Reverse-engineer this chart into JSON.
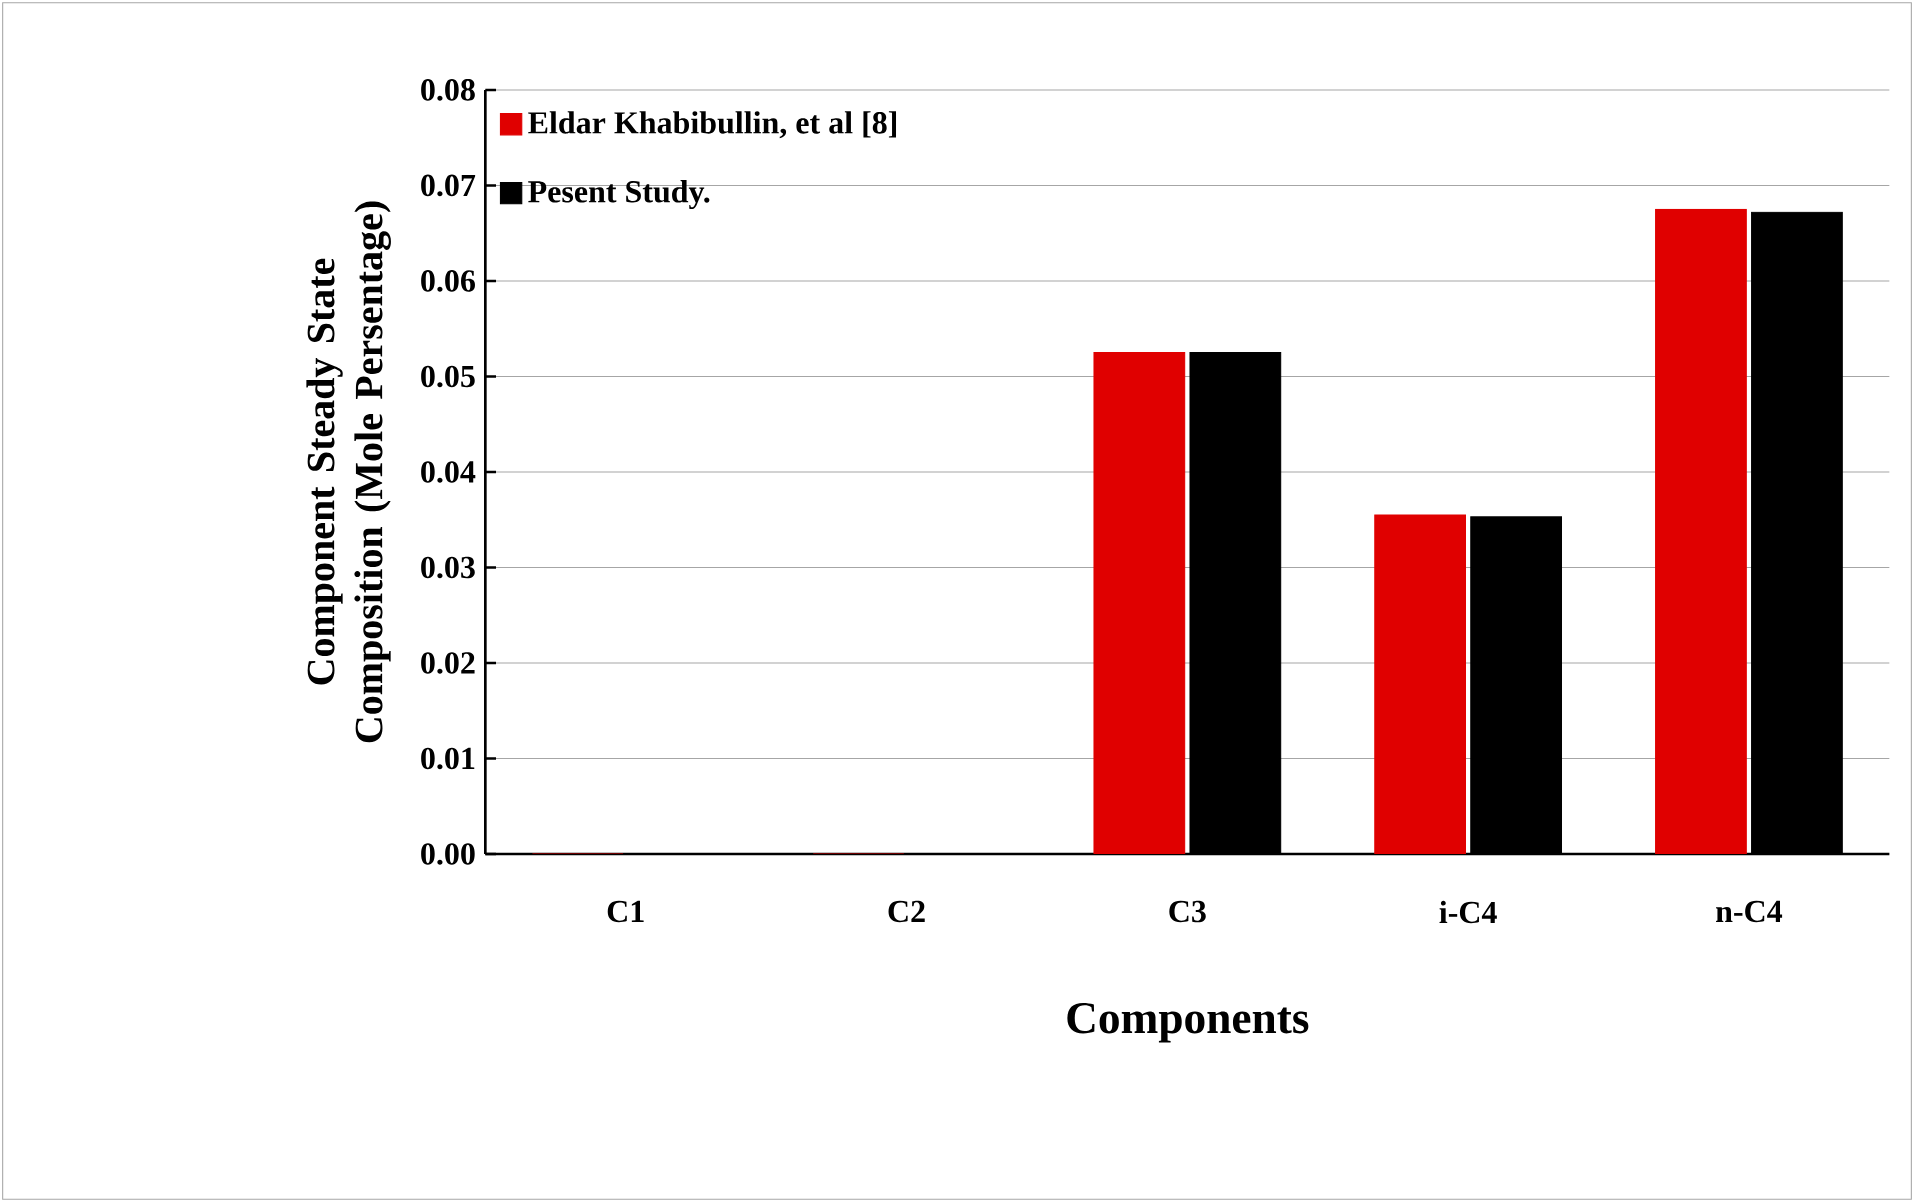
{
  "chart_data": {
    "type": "bar",
    "xlabel": "Components",
    "ylabel": "Component Steady State Composition (Mole Persentage)",
    "categories": [
      "C1",
      "C2",
      "C3",
      "i-C4",
      "n-C4"
    ],
    "series": [
      {
        "name": "Eldar Khabibullin, et al [8]",
        "color": "#e00000",
        "values": [
          0,
          0,
          0.0525,
          0.0355,
          0.0675
        ]
      },
      {
        "name": "Pesent Study.",
        "color": "#000000",
        "values": [
          0,
          0,
          0.0525,
          0.0353,
          0.0672
        ]
      }
    ],
    "ylim": [
      0,
      0.08
    ],
    "yticks": [
      {
        "value": 0,
        "label": "0.00"
      },
      {
        "value": 0.01,
        "label": "0.01"
      },
      {
        "value": 0.02,
        "label": "0.02"
      },
      {
        "value": 0.03,
        "label": "0.03"
      },
      {
        "value": 0.04,
        "label": "0.04"
      },
      {
        "value": 0.05,
        "label": "0.05"
      },
      {
        "value": 0.06,
        "label": "0.06"
      },
      {
        "value": 0.07,
        "label": "0.07"
      },
      {
        "value": 0.08,
        "label": "0.08"
      }
    ],
    "grid": "y",
    "legend": "top left"
  }
}
